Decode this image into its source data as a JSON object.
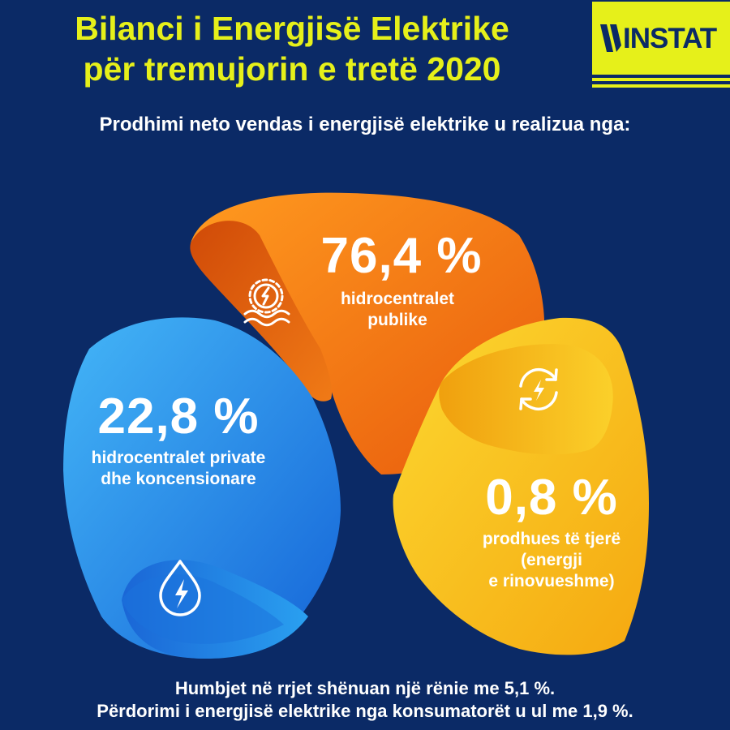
{
  "header": {
    "title_line1": "Bilanci i Energjisë Elektrike",
    "title_line2": "për tremujorin e tretë 2020",
    "logo_text": "INSTAT",
    "subtitle": "Prodhimi neto vendas i energjisë elektrike u realizua nga:"
  },
  "chart_data": {
    "type": "pie",
    "title": "Prodhimi neto vendas i energjisë elektrike u realizua nga:",
    "unit": "%",
    "slices": [
      {
        "value": 76.4,
        "value_label": "76,4 %",
        "label_lines": [
          "hidrocentralet",
          "publike"
        ],
        "color": "#f27a12",
        "icon": "hydro-turbine-icon"
      },
      {
        "value": 22.8,
        "value_label": "22,8 %",
        "label_lines": [
          "hidrocentralet private",
          "dhe koncensionare"
        ],
        "color": "#1e8fec",
        "icon": "water-drop-lightning-icon"
      },
      {
        "value": 0.8,
        "value_label": "0,8 %",
        "label_lines": [
          "prodhues të tjerë",
          "(energji",
          "e rinovueshme)"
        ],
        "color": "#f7c014",
        "icon": "renewable-cycle-icon"
      }
    ]
  },
  "footer": {
    "line1": "Humbjet në rrjet shënuan një rënie me 5,1 %.",
    "line2": "Përdorimi i energjisë elektrike nga konsumatorët u ul me 1,9 %."
  },
  "colors": {
    "background": "#0b2a66",
    "accent": "#e6f01a"
  }
}
